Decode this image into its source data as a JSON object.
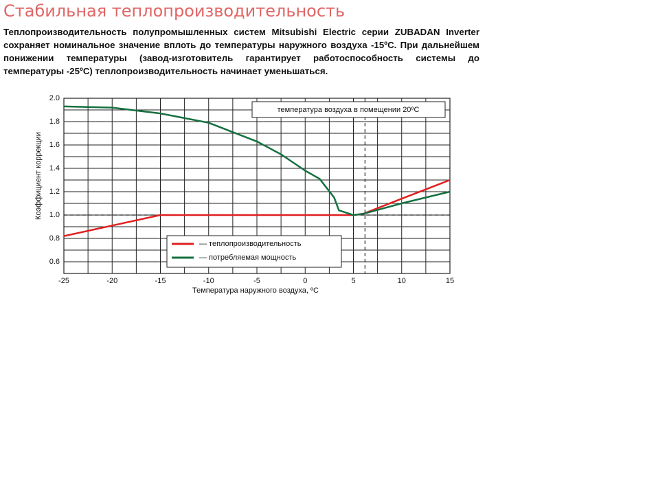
{
  "slide": {
    "title": "Стабильная теплопроизводительность",
    "paragraph": "Теплопроизводительность полупромышленных систем Mitsubishi Electric серии ZUBADAN Inverter сохраняет номинальное значение вплоть до температуры наружного воздуха -15ºС. При дальнейшем понижении температуры (завод-изготовитель гарантирует работоспособность системы до температуры -25ºС) теплопроизводительность начинает уменьшаться."
  },
  "chart_data": {
    "type": "line",
    "xlabel": "Температура наружного воздуха, ºС",
    "ylabel": "Коэффициент коррекции",
    "annotation": "температура воздуха в помещении 20ºС",
    "x": [
      -25,
      -20,
      -15,
      -10,
      -5,
      -2.5,
      0,
      1.5,
      3,
      3.5,
      5,
      6,
      10,
      15
    ],
    "series": [
      {
        "name": "— теплопроизводительность",
        "color": "#e02020",
        "values": [
          0.82,
          0.91,
          1.0,
          1.0,
          1.0,
          1.0,
          1.0,
          1.0,
          1.0,
          1.0,
          1.0,
          1.01,
          1.14,
          1.3
        ]
      },
      {
        "name": "— потребляемая мощность",
        "color": "#157040",
        "values": [
          1.93,
          1.92,
          1.87,
          1.79,
          1.63,
          1.52,
          1.38,
          1.31,
          1.15,
          1.04,
          1.0,
          1.01,
          1.1,
          1.2
        ]
      }
    ],
    "xlim": [
      -25,
      15
    ],
    "xticks": [
      -25,
      -20,
      -15,
      -10,
      -5,
      0,
      5,
      10,
      15
    ],
    "xgrid_minor": [
      -22.5,
      -17.5,
      -12.5,
      -7.5,
      -2.5,
      2.5,
      7.5,
      12.5
    ],
    "ylim": [
      0.5,
      2.0
    ],
    "yticks": [
      0.6,
      0.8,
      {
        "value": 1,
        "label": "1.0"
      },
      1.2,
      1.4,
      1.6,
      1.8,
      {
        "value": 2,
        "label": "2.0"
      }
    ],
    "ygrid_minor": [
      0.7,
      0.9,
      1.1,
      1.3,
      1.5,
      1.7,
      1.9
    ],
    "hline": 1,
    "vline": 6.2,
    "grid": true
  }
}
